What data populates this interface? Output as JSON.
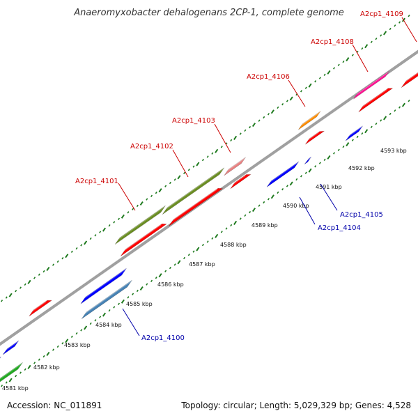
{
  "title": "Anaeromyxobacter dehalogenans 2CP-1, complete genome",
  "footer": {
    "accession": "Accession: NC_011891",
    "summary": "Topology: circular; Length: 5,029,329 bp; Genes: 4,528"
  },
  "colors": {
    "backbone": "#a0a0a0",
    "tick": "#1e7a1e",
    "label_forward": "#cc0000",
    "label_reverse": "#0000aa"
  },
  "scale_labels": [
    {
      "kbp": 4581,
      "text": "4581 kbp"
    },
    {
      "kbp": 4582,
      "text": "4582 kbp"
    },
    {
      "kbp": 4583,
      "text": "4583 kbp"
    },
    {
      "kbp": 4584,
      "text": "4584 kbp"
    },
    {
      "kbp": 4585,
      "text": "4585 kbp"
    },
    {
      "kbp": 4586,
      "text": "4586 kbp"
    },
    {
      "kbp": 4587,
      "text": "4587 kbp"
    },
    {
      "kbp": 4588,
      "text": "4588 kbp"
    },
    {
      "kbp": 4589,
      "text": "4589 kbp"
    },
    {
      "kbp": 4590,
      "text": "4590 kbp"
    },
    {
      "kbp": 4591,
      "text": "4591 kbp"
    },
    {
      "kbp": 4592,
      "text": "4592 kbp"
    },
    {
      "kbp": 4593,
      "text": "4593 kbp"
    }
  ],
  "gene_labels": [
    {
      "id": "A2cp1_4100",
      "strand": "reverse"
    },
    {
      "id": "A2cp1_4101",
      "strand": "forward"
    },
    {
      "id": "A2cp1_4102",
      "strand": "forward"
    },
    {
      "id": "A2cp1_4103",
      "strand": "forward"
    },
    {
      "id": "A2cp1_4104",
      "strand": "reverse"
    },
    {
      "id": "A2cp1_4105",
      "strand": "reverse"
    },
    {
      "id": "A2cp1_4106",
      "strand": "forward"
    },
    {
      "id": "A2cp1_4108",
      "strand": "forward"
    },
    {
      "id": "A2cp1_4109",
      "strand": "forward"
    }
  ],
  "features": [
    {
      "name": "feature-outer-4101",
      "color": "#6b8e23"
    },
    {
      "name": "feature-outer-4102",
      "color": "#6b8e23"
    },
    {
      "name": "feature-outer-4103",
      "color": "#e88080"
    },
    {
      "name": "feature-outer-4106",
      "color": "#ff8c00"
    },
    {
      "name": "feature-outer-4108",
      "color": "#ff1493"
    },
    {
      "name": "feature-outer-4109",
      "color": "#ff0000"
    },
    {
      "name": "feature-outer-left-blue",
      "color": "#0000ff"
    },
    {
      "name": "feature-outer-left-green",
      "color": "#22aa22"
    },
    {
      "name": "feature-red-a",
      "color": "#ff0000"
    },
    {
      "name": "feature-red-b",
      "color": "#ff0000"
    },
    {
      "name": "feature-red-c",
      "color": "#ff0000"
    },
    {
      "name": "feature-red-d",
      "color": "#ff0000"
    },
    {
      "name": "feature-red-e",
      "color": "#ff0000"
    },
    {
      "name": "feature-red-f",
      "color": "#ff0000"
    },
    {
      "name": "feature-blue-a",
      "color": "#0000ff"
    },
    {
      "name": "feature-blue-b",
      "color": "#0000ff"
    },
    {
      "name": "feature-blue-c",
      "color": "#0000ff"
    },
    {
      "name": "feature-blue-d",
      "color": "#0000ff"
    },
    {
      "name": "feature-blue-e",
      "color": "#0000ff"
    },
    {
      "name": "feature-4100-steelblue",
      "color": "#4682b4"
    },
    {
      "name": "feature-green-left",
      "color": "#22aa22"
    }
  ]
}
